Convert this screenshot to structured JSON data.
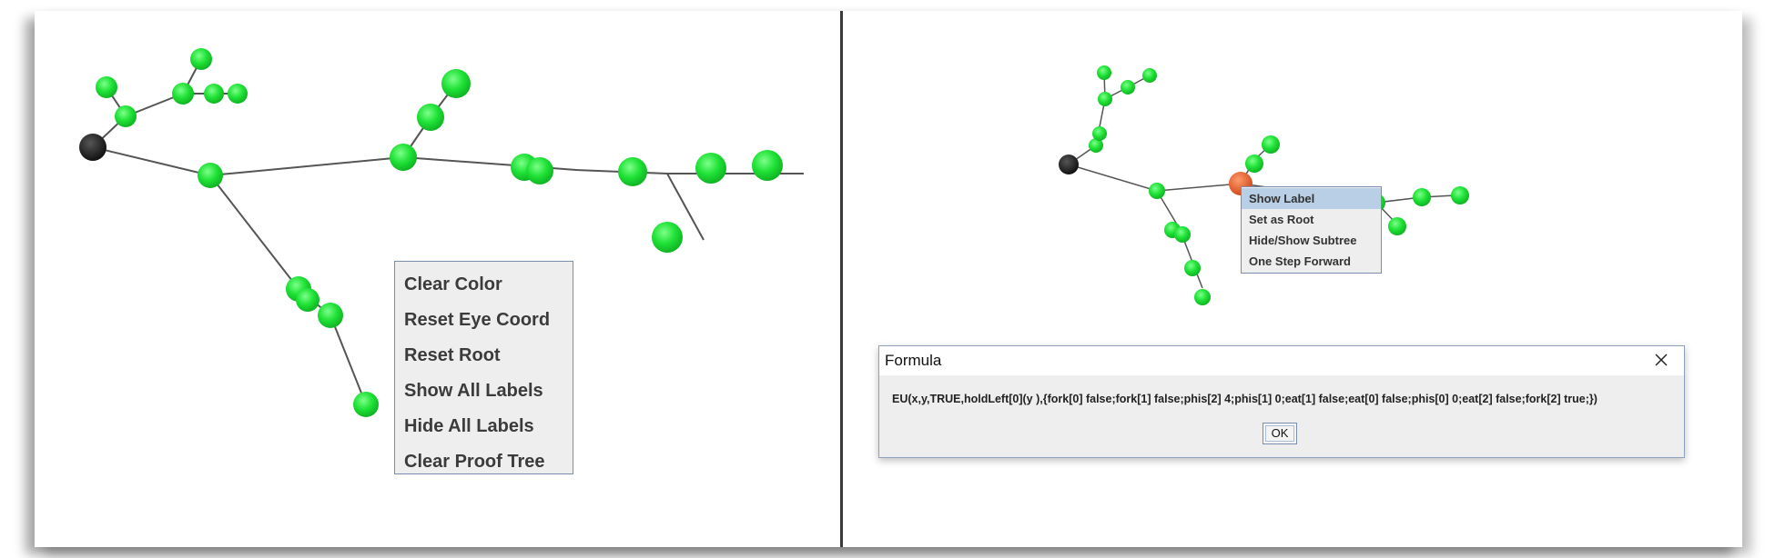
{
  "left_panel": {
    "context_menu": {
      "items": [
        "Clear Color",
        "Reset Eye Coord",
        "Reset Root",
        "Show All Labels",
        "Hide All Labels",
        "Clear Proof Tree"
      ]
    }
  },
  "right_panel": {
    "context_menu": {
      "items": [
        "Show Label",
        "Set as Root",
        "Hide/Show Subtree",
        "One Step Forward"
      ],
      "selected_index": 0
    },
    "dialog": {
      "title": "Formula",
      "message": "EU(x,y,TRUE,holdLeft[0](y ),{fork[0] false;fork[1] false;phis[2] 4;phis[1] 0;eat[1] false;eat[0] false;phis[0] 0;eat[2] false;fork[2] true;})",
      "ok_label": "OK",
      "close_icon": "close-x-icon"
    }
  },
  "colors": {
    "node": "#22e33a",
    "node_root": "#1f1f1f",
    "node_selected": "#e2582a",
    "edge": "#555555",
    "menu_bg": "#eeeeee",
    "menu_border": "#7a8db0",
    "menu_selected": "#b8cfe5"
  }
}
